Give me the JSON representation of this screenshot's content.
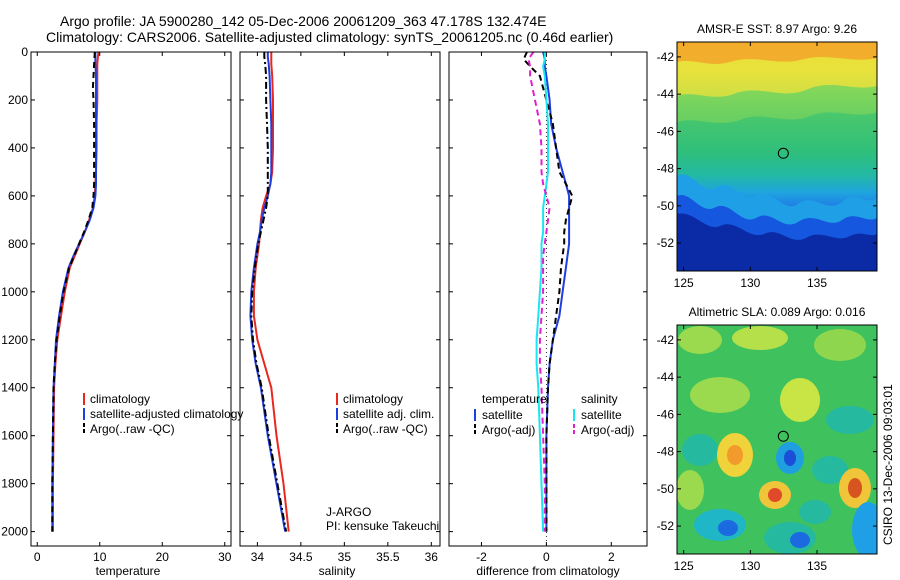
{
  "header": {
    "line1": "Argo profile: JA 5900280_142 05-Dec-2006 20061209_363 47.178S 132.474E",
    "line2": "Climatology: CARS2006. Satellite-adjusted climatology: synTS_20061205.nc (0.46d earlier)"
  },
  "chart_data": [
    {
      "id": "temperature",
      "type": "line",
      "title": "",
      "xlabel": "temperature",
      "ylabel": "",
      "xlim": [
        -1,
        31
      ],
      "ylim": [
        2060,
        0
      ],
      "y_reversed": true,
      "xticks": [
        0,
        10,
        20,
        30
      ],
      "yticks": [
        0,
        200,
        400,
        600,
        800,
        1000,
        1200,
        1400,
        1600,
        1800,
        2000
      ],
      "legend": "lower-right",
      "legend_entries": [
        "climatology",
        "satellite-adjusted climatology",
        "Argo(..raw -QC)"
      ],
      "series": [
        {
          "name": "climatology",
          "color": "#e8281e",
          "dash": "solid",
          "x": [
            9.8,
            9.7,
            9.6,
            9.6,
            9.6,
            9.5,
            9.5,
            9.4,
            9.3,
            9.2,
            8.9,
            8.3,
            7.6,
            6.8,
            6.0,
            5.2,
            4.4,
            3.8,
            3.2,
            2.9,
            2.7,
            2.6,
            2.5,
            2.5
          ],
          "y": [
            0,
            20,
            50,
            100,
            200,
            300,
            400,
            500,
            550,
            600,
            650,
            700,
            750,
            800,
            850,
            900,
            1000,
            1100,
            1200,
            1300,
            1400,
            1600,
            1800,
            2000
          ]
        },
        {
          "name": "satellite-adjusted climatology",
          "color": "#1f3ee0",
          "dash": "solid",
          "x": [
            9.3,
            9.3,
            9.3,
            9.4,
            9.4,
            9.4,
            9.4,
            9.4,
            9.4,
            9.3,
            9.0,
            8.4,
            7.6,
            6.7,
            5.8,
            5.0,
            4.1,
            3.5,
            3.0,
            2.8,
            2.6,
            2.5,
            2.4,
            2.4
          ],
          "y": [
            0,
            20,
            50,
            100,
            200,
            300,
            400,
            500,
            550,
            600,
            650,
            700,
            750,
            800,
            850,
            900,
            1000,
            1100,
            1200,
            1300,
            1400,
            1600,
            1800,
            2000
          ]
        },
        {
          "name": "Argo(..raw -QC)",
          "color": "#000000",
          "dash": "dash",
          "x": [
            9.2,
            9.1,
            9.0,
            8.9,
            9.0,
            9.1,
            9.1,
            9.1,
            9.1,
            9.0,
            8.8,
            8.2,
            7.5,
            6.7,
            5.9,
            5.1,
            4.2,
            3.6,
            3.1,
            2.8,
            2.6,
            2.5,
            2.4,
            2.4
          ],
          "y": [
            0,
            50,
            100,
            150,
            200,
            300,
            400,
            500,
            550,
            600,
            650,
            700,
            750,
            800,
            850,
            900,
            1000,
            1100,
            1200,
            1300,
            1400,
            1600,
            1800,
            2000
          ]
        }
      ]
    },
    {
      "id": "salinity",
      "type": "line",
      "title": "",
      "xlabel": "salinity",
      "ylabel": "",
      "xlim": [
        33.8,
        36.1
      ],
      "ylim": [
        2060,
        0
      ],
      "y_reversed": true,
      "xticks": [
        34,
        34.5,
        35,
        35.5,
        36
      ],
      "ytick_labels": false,
      "legend": "lower-right",
      "legend_entries": [
        "climatology",
        "satellite adj. clim.",
        "Argo(..raw -QC)"
      ],
      "annotations": [
        "J-ARGO",
        "PI: kensuke Takeuchi"
      ],
      "series": [
        {
          "name": "climatology",
          "color": "#e8281e",
          "dash": "solid",
          "x": [
            34.16,
            34.16,
            34.16,
            34.17,
            34.18,
            34.18,
            34.18,
            34.17,
            34.15,
            34.1,
            34.06,
            34.04,
            34.03,
            34.02,
            34.0,
            33.98,
            33.96,
            33.96,
            34.0,
            34.08,
            34.16,
            34.22,
            34.3,
            34.36
          ],
          "y": [
            0,
            20,
            50,
            100,
            200,
            300,
            400,
            500,
            550,
            600,
            650,
            700,
            750,
            800,
            850,
            900,
            1000,
            1100,
            1200,
            1300,
            1400,
            1600,
            1800,
            2000
          ]
        },
        {
          "name": "satellite adj. clim.",
          "color": "#1f3ee0",
          "dash": "solid",
          "x": [
            34.12,
            34.12,
            34.13,
            34.14,
            34.15,
            34.16,
            34.16,
            34.16,
            34.15,
            34.12,
            34.08,
            34.05,
            34.03,
            34.0,
            33.98,
            33.96,
            33.93,
            33.92,
            33.94,
            33.98,
            34.04,
            34.12,
            34.22,
            34.32
          ],
          "y": [
            0,
            20,
            50,
            100,
            200,
            300,
            400,
            500,
            550,
            600,
            650,
            700,
            750,
            800,
            850,
            900,
            1000,
            1100,
            1200,
            1300,
            1400,
            1600,
            1800,
            2000
          ]
        },
        {
          "name": "Argo(..raw -QC)",
          "color": "#000000",
          "dash": "dashdot",
          "x": [
            34.08,
            34.08,
            34.09,
            34.1,
            34.1,
            34.11,
            34.12,
            34.12,
            34.12,
            34.12,
            34.1,
            34.07,
            34.04,
            34.01,
            33.99,
            33.97,
            33.94,
            33.93,
            33.95,
            33.99,
            34.05,
            34.13,
            34.23,
            34.33
          ],
          "y": [
            0,
            20,
            50,
            100,
            200,
            300,
            400,
            500,
            550,
            600,
            650,
            700,
            750,
            800,
            850,
            900,
            1000,
            1100,
            1200,
            1300,
            1400,
            1600,
            1800,
            2000
          ]
        }
      ]
    },
    {
      "id": "difference",
      "type": "line",
      "title": "",
      "xlabel": "difference from climatology",
      "ylabel": "",
      "xlim": [
        -3,
        3.1
      ],
      "ylim": [
        2060,
        0
      ],
      "y_reversed": true,
      "xticks": [
        -2,
        0,
        2
      ],
      "ytick_labels": false,
      "zero_line": "dotted",
      "legend": "lower-center",
      "legend_groups": [
        {
          "heading": "temperature",
          "entries": [
            "satellite",
            "Argo(-adj)"
          ]
        },
        {
          "heading": "salinity",
          "entries": [
            "satellite",
            "Argo(-adj)"
          ]
        }
      ],
      "series": [
        {
          "name": "satellite",
          "group": "temperature",
          "color": "#1f3ee0",
          "dash": "solid",
          "x": [
            -0.1,
            -0.05,
            -0.05,
            0.0,
            0.1,
            0.15,
            0.3,
            0.5,
            0.6,
            0.7,
            0.7,
            0.7,
            0.7,
            0.7,
            0.65,
            0.6,
            0.5,
            0.4,
            0.2,
            0.1,
            0.05,
            0.0,
            0.0,
            0.0
          ],
          "y": [
            0,
            30,
            60,
            100,
            200,
            300,
            400,
            500,
            550,
            600,
            650,
            700,
            750,
            800,
            850,
            900,
            1000,
            1100,
            1200,
            1300,
            1400,
            1600,
            1800,
            2000
          ]
        },
        {
          "name": "Argo(-adj)",
          "group": "temperature",
          "color": "#000000",
          "dash": "dash",
          "x": [
            -0.6,
            -0.7,
            -0.5,
            -0.2,
            0.0,
            0.2,
            0.3,
            0.4,
            0.6,
            0.8,
            0.7,
            0.6,
            0.55,
            0.55,
            0.5,
            0.45,
            0.4,
            0.3,
            0.2,
            0.1,
            0.05,
            0.0,
            0.0,
            0.0
          ],
          "y": [
            0,
            30,
            60,
            100,
            200,
            300,
            400,
            500,
            550,
            600,
            650,
            700,
            750,
            800,
            850,
            900,
            1000,
            1100,
            1200,
            1300,
            1400,
            1600,
            1800,
            2000
          ]
        },
        {
          "name": "satellite",
          "group": "salinity",
          "color": "#19e6f0",
          "dash": "solid",
          "x": [
            -0.05,
            -0.05,
            -0.1,
            -0.05,
            0.0,
            0.05,
            0.05,
            0.05,
            0.0,
            -0.05,
            -0.1,
            -0.1,
            -0.1,
            -0.15,
            -0.15,
            -0.15,
            -0.2,
            -0.25,
            -0.3,
            -0.3,
            -0.25,
            -0.2,
            -0.15,
            -0.1
          ],
          "y": [
            0,
            30,
            60,
            100,
            200,
            300,
            400,
            500,
            550,
            600,
            650,
            700,
            750,
            800,
            850,
            900,
            1000,
            1100,
            1200,
            1300,
            1400,
            1600,
            1800,
            2000
          ]
        },
        {
          "name": "Argo(-adj)",
          "group": "salinity",
          "color": "#e020d0",
          "dash": "dash",
          "x": [
            -0.4,
            -0.55,
            -0.5,
            -0.5,
            -0.35,
            -0.2,
            -0.15,
            -0.15,
            -0.1,
            0.0,
            0.1,
            0.05,
            0.0,
            -0.05,
            -0.1,
            -0.1,
            -0.1,
            -0.15,
            -0.2,
            -0.2,
            -0.15,
            -0.1,
            -0.05,
            -0.05
          ],
          "y": [
            0,
            30,
            60,
            100,
            200,
            300,
            400,
            500,
            550,
            600,
            650,
            700,
            750,
            800,
            850,
            900,
            1000,
            1100,
            1200,
            1300,
            1400,
            1600,
            1800,
            2000
          ]
        }
      ]
    },
    {
      "id": "sst-map",
      "type": "heatmap",
      "title": "AMSR-E SST: 8.97 Argo: 9.26",
      "xlim": [
        124.5,
        139.5
      ],
      "ylim": [
        -53.5,
        -41.2
      ],
      "xticks": [
        125,
        130,
        135
      ],
      "yticks": [
        -42,
        -44,
        -46,
        -48,
        -50,
        -52
      ],
      "colormap": "jet",
      "marker": {
        "lon": 132.474,
        "lat": -47.178
      }
    },
    {
      "id": "sla-map",
      "type": "heatmap",
      "title": "Altimetric SLA: 0.089 Argo: 0.016",
      "xlim": [
        124.5,
        139.5
      ],
      "ylim": [
        -53.5,
        -41.2
      ],
      "xticks": [
        125,
        130,
        135
      ],
      "yticks": [
        -42,
        -44,
        -46,
        -48,
        -50,
        -52
      ],
      "colormap": "jet",
      "marker": {
        "lon": 132.474,
        "lat": -47.178
      }
    }
  ],
  "credit": "CSIRO 13-Dec-2006 09:03:01"
}
